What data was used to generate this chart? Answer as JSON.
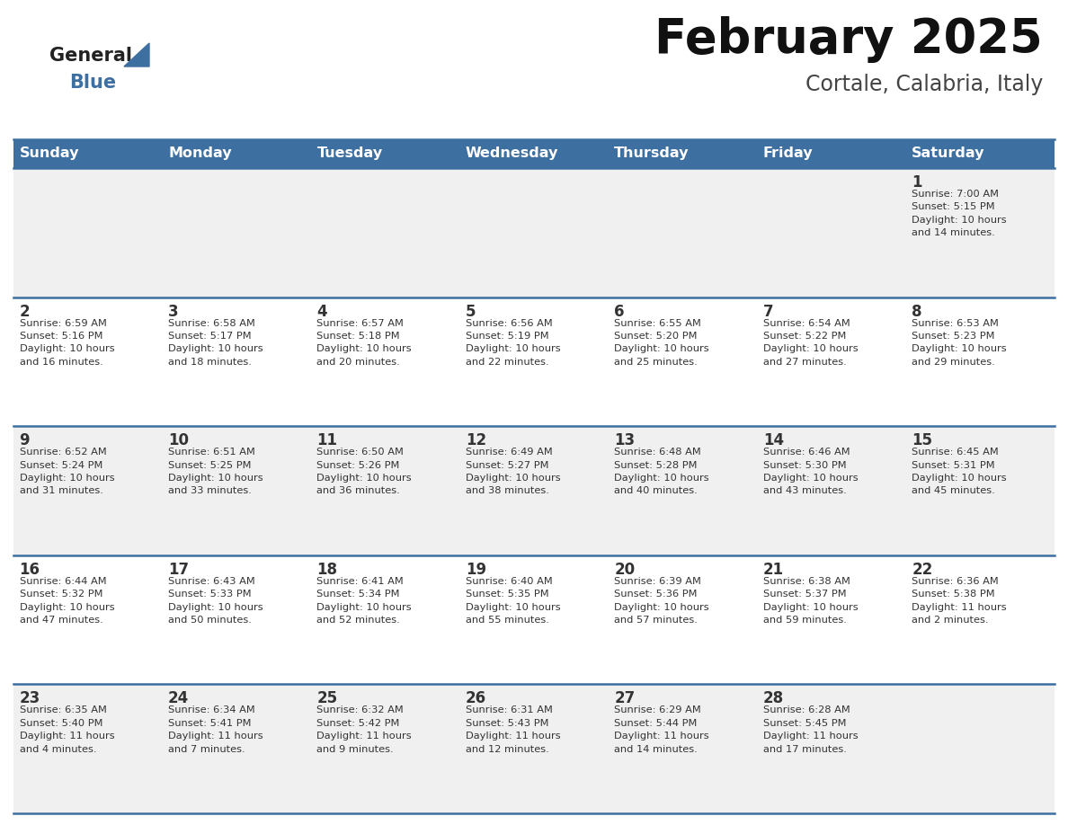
{
  "title": "February 2025",
  "subtitle": "Cortale, Calabria, Italy",
  "days_of_week": [
    "Sunday",
    "Monday",
    "Tuesday",
    "Wednesday",
    "Thursday",
    "Friday",
    "Saturday"
  ],
  "header_bg": "#3d6fa0",
  "header_text": "#ffffff",
  "row_bg_odd": "#f0f0f0",
  "row_bg_even": "#ffffff",
  "cell_text": "#333333",
  "line_color": "#3d6fa0",
  "title_color": "#111111",
  "subtitle_color": "#444444",
  "logo_general_color": "#222222",
  "logo_blue_color": "#3d6fa0",
  "calendar_data": [
    [
      {
        "day": null,
        "info": null
      },
      {
        "day": null,
        "info": null
      },
      {
        "day": null,
        "info": null
      },
      {
        "day": null,
        "info": null
      },
      {
        "day": null,
        "info": null
      },
      {
        "day": null,
        "info": null
      },
      {
        "day": 1,
        "info": "Sunrise: 7:00 AM\nSunset: 5:15 PM\nDaylight: 10 hours\nand 14 minutes."
      }
    ],
    [
      {
        "day": 2,
        "info": "Sunrise: 6:59 AM\nSunset: 5:16 PM\nDaylight: 10 hours\nand 16 minutes."
      },
      {
        "day": 3,
        "info": "Sunrise: 6:58 AM\nSunset: 5:17 PM\nDaylight: 10 hours\nand 18 minutes."
      },
      {
        "day": 4,
        "info": "Sunrise: 6:57 AM\nSunset: 5:18 PM\nDaylight: 10 hours\nand 20 minutes."
      },
      {
        "day": 5,
        "info": "Sunrise: 6:56 AM\nSunset: 5:19 PM\nDaylight: 10 hours\nand 22 minutes."
      },
      {
        "day": 6,
        "info": "Sunrise: 6:55 AM\nSunset: 5:20 PM\nDaylight: 10 hours\nand 25 minutes."
      },
      {
        "day": 7,
        "info": "Sunrise: 6:54 AM\nSunset: 5:22 PM\nDaylight: 10 hours\nand 27 minutes."
      },
      {
        "day": 8,
        "info": "Sunrise: 6:53 AM\nSunset: 5:23 PM\nDaylight: 10 hours\nand 29 minutes."
      }
    ],
    [
      {
        "day": 9,
        "info": "Sunrise: 6:52 AM\nSunset: 5:24 PM\nDaylight: 10 hours\nand 31 minutes."
      },
      {
        "day": 10,
        "info": "Sunrise: 6:51 AM\nSunset: 5:25 PM\nDaylight: 10 hours\nand 33 minutes."
      },
      {
        "day": 11,
        "info": "Sunrise: 6:50 AM\nSunset: 5:26 PM\nDaylight: 10 hours\nand 36 minutes."
      },
      {
        "day": 12,
        "info": "Sunrise: 6:49 AM\nSunset: 5:27 PM\nDaylight: 10 hours\nand 38 minutes."
      },
      {
        "day": 13,
        "info": "Sunrise: 6:48 AM\nSunset: 5:28 PM\nDaylight: 10 hours\nand 40 minutes."
      },
      {
        "day": 14,
        "info": "Sunrise: 6:46 AM\nSunset: 5:30 PM\nDaylight: 10 hours\nand 43 minutes."
      },
      {
        "day": 15,
        "info": "Sunrise: 6:45 AM\nSunset: 5:31 PM\nDaylight: 10 hours\nand 45 minutes."
      }
    ],
    [
      {
        "day": 16,
        "info": "Sunrise: 6:44 AM\nSunset: 5:32 PM\nDaylight: 10 hours\nand 47 minutes."
      },
      {
        "day": 17,
        "info": "Sunrise: 6:43 AM\nSunset: 5:33 PM\nDaylight: 10 hours\nand 50 minutes."
      },
      {
        "day": 18,
        "info": "Sunrise: 6:41 AM\nSunset: 5:34 PM\nDaylight: 10 hours\nand 52 minutes."
      },
      {
        "day": 19,
        "info": "Sunrise: 6:40 AM\nSunset: 5:35 PM\nDaylight: 10 hours\nand 55 minutes."
      },
      {
        "day": 20,
        "info": "Sunrise: 6:39 AM\nSunset: 5:36 PM\nDaylight: 10 hours\nand 57 minutes."
      },
      {
        "day": 21,
        "info": "Sunrise: 6:38 AM\nSunset: 5:37 PM\nDaylight: 10 hours\nand 59 minutes."
      },
      {
        "day": 22,
        "info": "Sunrise: 6:36 AM\nSunset: 5:38 PM\nDaylight: 11 hours\nand 2 minutes."
      }
    ],
    [
      {
        "day": 23,
        "info": "Sunrise: 6:35 AM\nSunset: 5:40 PM\nDaylight: 11 hours\nand 4 minutes."
      },
      {
        "day": 24,
        "info": "Sunrise: 6:34 AM\nSunset: 5:41 PM\nDaylight: 11 hours\nand 7 minutes."
      },
      {
        "day": 25,
        "info": "Sunrise: 6:32 AM\nSunset: 5:42 PM\nDaylight: 11 hours\nand 9 minutes."
      },
      {
        "day": 26,
        "info": "Sunrise: 6:31 AM\nSunset: 5:43 PM\nDaylight: 11 hours\nand 12 minutes."
      },
      {
        "day": 27,
        "info": "Sunrise: 6:29 AM\nSunset: 5:44 PM\nDaylight: 11 hours\nand 14 minutes."
      },
      {
        "day": 28,
        "info": "Sunrise: 6:28 AM\nSunset: 5:45 PM\nDaylight: 11 hours\nand 17 minutes."
      },
      {
        "day": null,
        "info": null
      }
    ]
  ]
}
